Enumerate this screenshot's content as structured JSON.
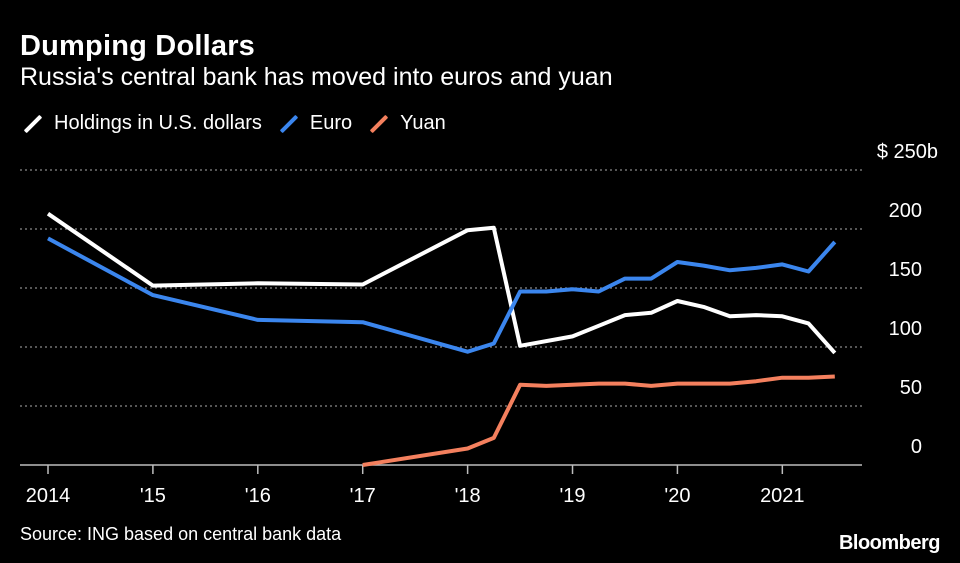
{
  "chart_data": {
    "type": "line",
    "title": "Dumping Dollars",
    "subtitle": "Russia's central bank has moved into euros and yuan",
    "y_top_label": "$ 250b",
    "y_ticks": [
      0,
      50,
      100,
      150,
      200,
      250
    ],
    "y_tick_labels": [
      "0",
      "50",
      "100",
      "150",
      "200"
    ],
    "ylim": [
      0,
      250
    ],
    "x_ticks": [
      2014,
      2015,
      2016,
      2017,
      2018,
      2019,
      2020,
      2021
    ],
    "x_tick_labels": [
      "2014",
      "'15",
      "'16",
      "'17",
      "'18",
      "'19",
      "'20",
      "2021"
    ],
    "xlim": [
      2014,
      2021.75
    ],
    "grid": true,
    "legend": "top-left",
    "series": [
      {
        "name": "Holdings in U.S. dollars",
        "color": "#ffffff",
        "x": [
          2014.0,
          2015.0,
          2016.0,
          2017.0,
          2018.0,
          2018.25,
          2018.5,
          2019.0,
          2019.25,
          2019.5,
          2019.75,
          2020.0,
          2020.25,
          2020.5,
          2020.75,
          2021.0,
          2021.25,
          2021.5
        ],
        "y": [
          213,
          152,
          154,
          153,
          199,
          201,
          101,
          109,
          118,
          127,
          129,
          139,
          134,
          126,
          127,
          126,
          120,
          95
        ]
      },
      {
        "name": "Euro",
        "color": "#3b86ee",
        "x": [
          2014.0,
          2015.0,
          2016.0,
          2017.0,
          2018.0,
          2018.25,
          2018.5,
          2018.75,
          2019.0,
          2019.25,
          2019.5,
          2019.75,
          2020.0,
          2020.25,
          2020.5,
          2020.75,
          2021.0,
          2021.25,
          2021.5
        ],
        "y": [
          192,
          144,
          123,
          121,
          96,
          103,
          147,
          147,
          149,
          147,
          158,
          158,
          172,
          169,
          165,
          167,
          170,
          164,
          189
        ]
      },
      {
        "name": "Yuan",
        "color": "#f4805e",
        "x": [
          2017.0,
          2018.0,
          2018.25,
          2018.5,
          2018.75,
          2019.0,
          2019.25,
          2019.5,
          2019.75,
          2020.0,
          2020.25,
          2020.5,
          2020.75,
          2021.0,
          2021.25,
          2021.5
        ],
        "y": [
          0,
          14,
          23,
          68,
          67,
          68,
          69,
          69,
          67,
          69,
          69,
          69,
          71,
          74,
          74,
          75
        ]
      }
    ]
  },
  "source": "Source: ING based on central bank data",
  "brand": "Bloomberg"
}
